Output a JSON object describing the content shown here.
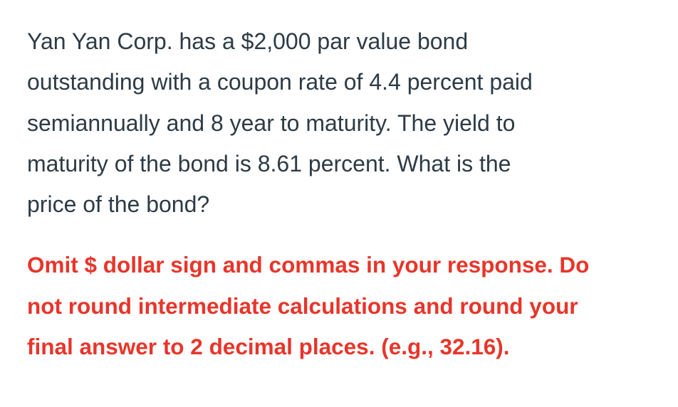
{
  "question": {
    "lines": [
      "Yan Yan Corp. has a $2,000 par value bond",
      "outstanding with a coupon rate of 4.4 percent paid",
      "semiannually and 8 year to maturity. The yield to",
      "maturity of the bond is 8.61 percent. What is the",
      "price of the bond?"
    ]
  },
  "instruction": {
    "color": "#e8352a",
    "lines": [
      "Omit $ dollar sign and commas in your response. Do",
      "not round intermediate calculations and round your",
      "final answer to 2 decimal places. (e.g., 32.16)."
    ]
  }
}
